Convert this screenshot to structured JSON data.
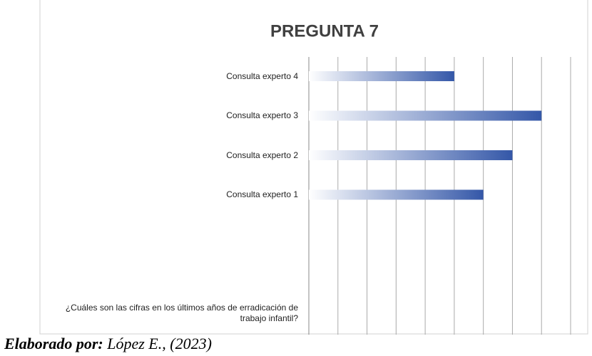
{
  "chart_data": {
    "type": "barh",
    "title": "PREGUNTA 7",
    "categories": [
      "Consulta experto 4",
      "Consulta experto 3",
      "Consulta experto 2",
      "Consulta experto 1",
      null,
      null,
      "¿Cuáles son las cifras en los últimos años de erradicación de trabajo infantil?"
    ],
    "values": [
      5,
      8,
      7,
      6,
      null,
      null,
      null
    ],
    "color": "#3457a8",
    "xlim": [
      0,
      9
    ],
    "xticks": [
      0,
      1,
      2,
      3,
      4,
      5,
      6,
      7,
      8,
      9
    ],
    "grid": true
  },
  "caption": {
    "label": "Elaborado por:",
    "text": "López E., (2023)"
  }
}
